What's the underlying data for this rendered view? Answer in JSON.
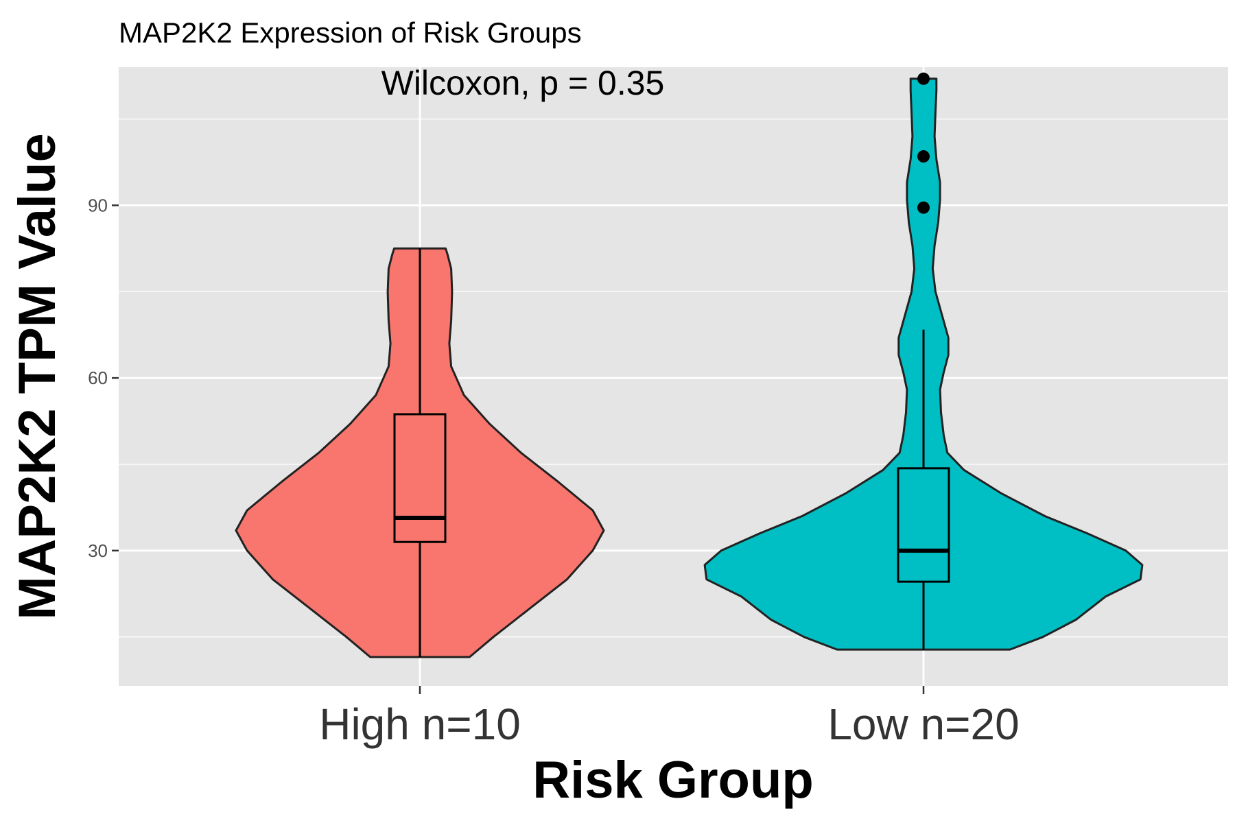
{
  "chart_data": {
    "type": "violin",
    "title": "MAP2K2 Expression of Risk Groups",
    "annotation": "Wilcoxon, p = 0.35",
    "xlabel": "Risk Group",
    "ylabel": "MAP2K2 TPM Value",
    "categories": [
      "High n=10",
      "Low n=20"
    ],
    "y_ticks": [
      30,
      60,
      90
    ],
    "ylim": [
      6.5,
      114
    ],
    "grid": true,
    "legend": "none",
    "series": [
      {
        "category": "High n=10",
        "color": "#F8766D",
        "min": 11.5,
        "q1": 31.5,
        "median": 35.7,
        "q3": 53.7,
        "max": 82.5,
        "outliers": []
      },
      {
        "category": "Low n=20",
        "color": "#00BFC4",
        "min": 12.8,
        "q1": 24.6,
        "median": 30.0,
        "q3": 44.3,
        "whisker_high": 68.4,
        "max": 112.0,
        "outliers": [
          89.6,
          98.5,
          112.0
        ]
      }
    ]
  }
}
